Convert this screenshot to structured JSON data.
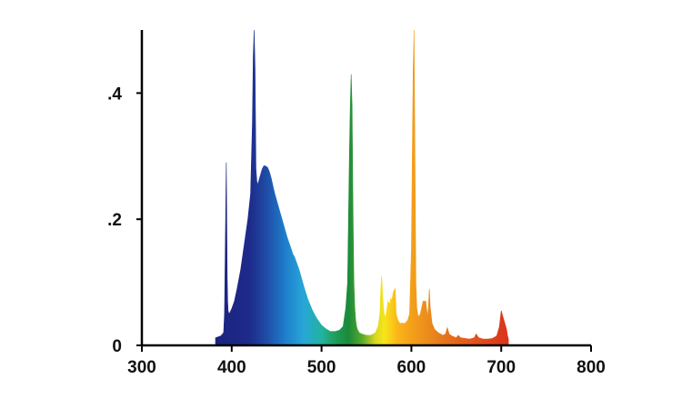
{
  "chart_data": {
    "type": "area",
    "title": "",
    "xlabel": "",
    "ylabel": "",
    "xlim": [
      300,
      800
    ],
    "ylim": [
      0,
      0.5
    ],
    "grid": false,
    "x_ticks": [
      300,
      400,
      500,
      600,
      700,
      800
    ],
    "x_tick_labels": [
      "300",
      "400",
      "500",
      "600",
      "700",
      "800"
    ],
    "y_ticks": [
      0,
      0.2,
      0.4
    ],
    "y_tick_labels": [
      "0",
      ".2",
      ".4"
    ],
    "series": [
      {
        "x": [
          382,
          388,
          391,
          392,
          393,
          394,
          395,
          395.5,
          396,
          397,
          398,
          400,
          403,
          406,
          410,
          414,
          418,
          421,
          423,
          424,
          425,
          426,
          427,
          428,
          429,
          430,
          432,
          434,
          436,
          438,
          440,
          442,
          444,
          446,
          448,
          450,
          453,
          456,
          459,
          462,
          465,
          468,
          470,
          472,
          475,
          478,
          481,
          485,
          490,
          495,
          500,
          505,
          510,
          515,
          520,
          524,
          527,
          529,
          530,
          531,
          532,
          533,
          534,
          535,
          536,
          537,
          538,
          539,
          540,
          542,
          545,
          550,
          555,
          560,
          563,
          565,
          566,
          567,
          568,
          569,
          570,
          572,
          574,
          576,
          577,
          578,
          580,
          582,
          583,
          585,
          587,
          590,
          593,
          596,
          598,
          600,
          601,
          602,
          603,
          604,
          605,
          606,
          607,
          608,
          610,
          613,
          616,
          618,
          619,
          620,
          621,
          623,
          626,
          630,
          635,
          638,
          640,
          642,
          645,
          650,
          652,
          655,
          660,
          665,
          670,
          672,
          675,
          680,
          685,
          690,
          695,
          698,
          700,
          702,
          704,
          706,
          707,
          708
        ],
        "y": [
          0.012,
          0.015,
          0.02,
          0.05,
          0.17,
          0.29,
          0.11,
          0.07,
          0.055,
          0.05,
          0.052,
          0.058,
          0.07,
          0.09,
          0.12,
          0.16,
          0.2,
          0.24,
          0.35,
          0.46,
          0.5,
          0.44,
          0.28,
          0.26,
          0.255,
          0.26,
          0.27,
          0.28,
          0.285,
          0.284,
          0.282,
          0.275,
          0.265,
          0.252,
          0.24,
          0.23,
          0.215,
          0.2,
          0.185,
          0.17,
          0.158,
          0.145,
          0.14,
          0.132,
          0.12,
          0.105,
          0.09,
          0.072,
          0.055,
          0.042,
          0.032,
          0.026,
          0.022,
          0.022,
          0.024,
          0.03,
          0.06,
          0.1,
          0.2,
          0.3,
          0.38,
          0.43,
          0.38,
          0.22,
          0.1,
          0.06,
          0.04,
          0.03,
          0.025,
          0.02,
          0.018,
          0.016,
          0.016,
          0.02,
          0.03,
          0.05,
          0.09,
          0.11,
          0.08,
          0.06,
          0.045,
          0.05,
          0.07,
          0.065,
          0.075,
          0.07,
          0.085,
          0.09,
          0.05,
          0.04,
          0.035,
          0.035,
          0.035,
          0.04,
          0.05,
          0.15,
          0.3,
          0.44,
          0.5,
          0.3,
          0.1,
          0.06,
          0.05,
          0.045,
          0.05,
          0.07,
          0.07,
          0.045,
          0.06,
          0.09,
          0.06,
          0.035,
          0.025,
          0.02,
          0.016,
          0.018,
          0.028,
          0.018,
          0.015,
          0.012,
          0.016,
          0.012,
          0.011,
          0.01,
          0.012,
          0.018,
          0.012,
          0.01,
          0.01,
          0.011,
          0.015,
          0.03,
          0.055,
          0.045,
          0.035,
          0.025,
          0.015,
          0.01
        ]
      }
    ]
  }
}
